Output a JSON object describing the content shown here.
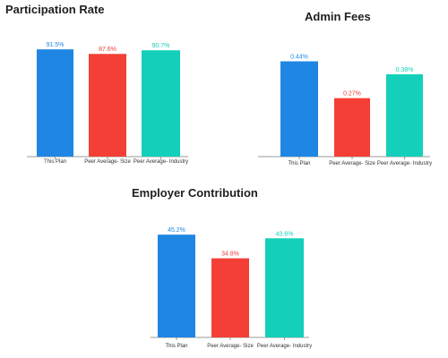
{
  "chart_data": [
    {
      "type": "bar",
      "title": "Participation Rate",
      "categories": [
        "This Plan",
        "Peer Average- Size",
        "Peer Average- Industry"
      ],
      "values": [
        91.5,
        87.6,
        90.7
      ],
      "value_labels": [
        "91.5%",
        "87.6%",
        "90.7%"
      ],
      "colors": [
        "#1f86e3",
        "#f33f35",
        "#14cfb9"
      ],
      "ylim": [
        0,
        100
      ],
      "grid": false,
      "legend": false
    },
    {
      "type": "bar",
      "title": "Admin Fees",
      "categories": [
        "This Plan",
        "Peer Average- Size",
        "Peer Average- Industry"
      ],
      "values": [
        0.44,
        0.27,
        0.38
      ],
      "value_labels": [
        "0.44%",
        "0.27%",
        "0.38%"
      ],
      "colors": [
        "#1f86e3",
        "#f33f35",
        "#14cfb9"
      ],
      "ylim": [
        0,
        0.5
      ],
      "grid": false,
      "legend": false
    },
    {
      "type": "bar",
      "title": "Employer Contribution",
      "categories": [
        "This Plan",
        "Peer Average- Size",
        "Peer Average- Industry"
      ],
      "values": [
        45.2,
        34.8,
        43.6
      ],
      "value_labels": [
        "45.2%",
        "34.8%",
        "43.6%"
      ],
      "colors": [
        "#1f86e3",
        "#f33f35",
        "#14cfb9"
      ],
      "ylim": [
        0,
        50
      ],
      "grid": false,
      "legend": false
    }
  ]
}
